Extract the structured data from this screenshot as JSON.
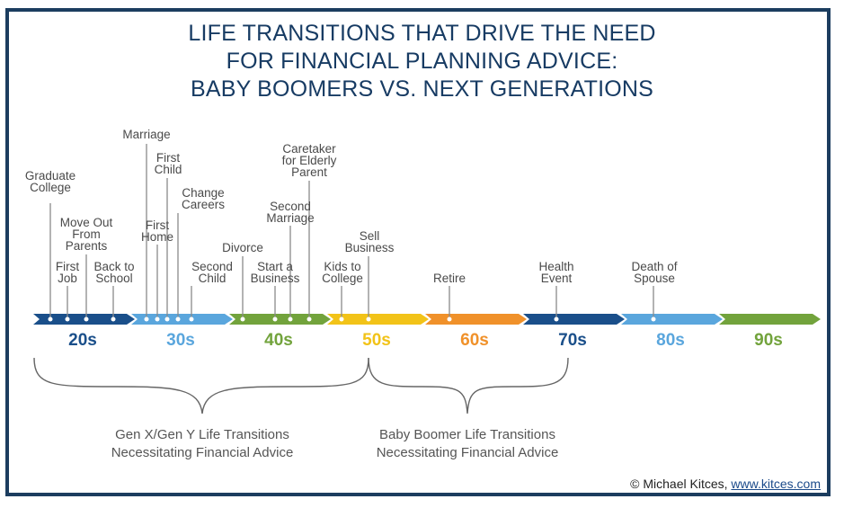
{
  "title": {
    "line1": "LIFE TRANSITIONS THAT DRIVE THE NEED",
    "line2": "FOR FINANCIAL PLANNING ADVICE:",
    "line3": "BABY BOOMERS VS. NEXT GENERATIONS"
  },
  "decades": [
    {
      "label": "20s",
      "color": "#1a4f8a"
    },
    {
      "label": "30s",
      "color": "#5aa6dd"
    },
    {
      "label": "40s",
      "color": "#72a33c"
    },
    {
      "label": "50s",
      "color": "#f2c318"
    },
    {
      "label": "60s",
      "color": "#f0912a"
    },
    {
      "label": "70s",
      "color": "#1a4f8a"
    },
    {
      "label": "80s",
      "color": "#5aa6dd"
    },
    {
      "label": "90s",
      "color": "#72a33c"
    }
  ],
  "events": {
    "graduate_college": {
      "line1": "Graduate",
      "line2": "College"
    },
    "first_job": {
      "line1": "First",
      "line2": "Job"
    },
    "move_out": {
      "line1": "Move Out",
      "line2": "From",
      "line3": "Parents"
    },
    "back_to_school": {
      "line1": "Back to",
      "line2": "School"
    },
    "marriage": {
      "line1": "Marriage"
    },
    "first_home": {
      "line1": "First",
      "line2": "Home"
    },
    "first_child": {
      "line1": "First",
      "line2": "Child"
    },
    "change_careers": {
      "line1": "Change",
      "line2": "Careers"
    },
    "second_child": {
      "line1": "Second",
      "line2": "Child"
    },
    "divorce": {
      "line1": "Divorce"
    },
    "start_business": {
      "line1": "Start a",
      "line2": "Business"
    },
    "second_marriage": {
      "line1": "Second",
      "line2": "Marriage"
    },
    "caretaker": {
      "line1": "Caretaker",
      "line2": "for Elderly",
      "line3": "Parent"
    },
    "kids_to_college": {
      "line1": "Kids to",
      "line2": "College"
    },
    "sell_business": {
      "line1": "Sell",
      "line2": "Business"
    },
    "retire": {
      "line1": "Retire"
    },
    "health_event": {
      "line1": "Health",
      "line2": "Event"
    },
    "death_of_spouse": {
      "line1": "Death of",
      "line2": "Spouse"
    }
  },
  "groups": {
    "genxy": {
      "line1": "Gen X/Gen Y Life Transitions",
      "line2": "Necessitating Financial Advice"
    },
    "boomer": {
      "line1": "Baby Boomer Life Transitions",
      "line2": "Necessitating Financial Advice"
    }
  },
  "credit": {
    "text": "© Michael Kitces, ",
    "link": "www.kitces.com"
  }
}
